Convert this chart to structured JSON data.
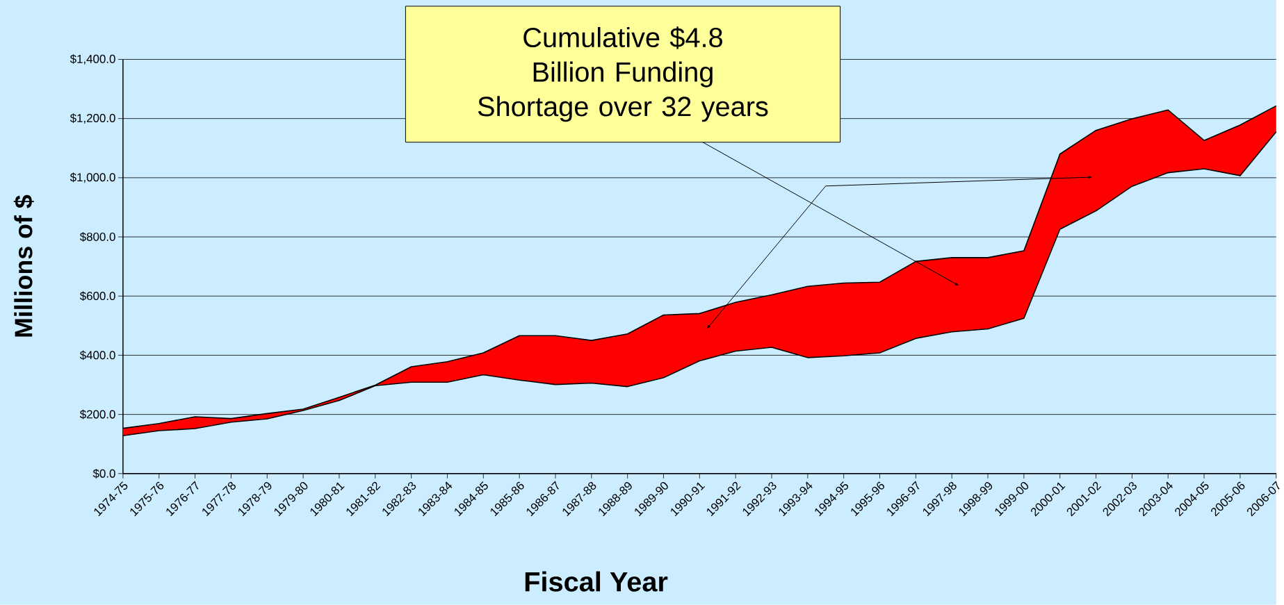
{
  "chart_data": {
    "type": "area",
    "ylabel": "Millions of $",
    "xlabel": "Fiscal Year",
    "annotations": [
      "Cumulative $4.8 Billion Funding Shortage over 32 years"
    ],
    "categories": [
      "1974-75",
      "1975-76",
      "1976-77",
      "1977-78",
      "1978-79",
      "1979-80",
      "1980-81",
      "1981-82",
      "1982-83",
      "1983-84",
      "1984-85",
      "1985-86",
      "1986-87",
      "1987-88",
      "1988-89",
      "1989-90",
      "1990-91",
      "1991-92",
      "1992-93",
      "1993-94",
      "1994-95",
      "1995-96",
      "1996-97",
      "1997-98",
      "1998-99",
      "1999-00",
      "2000-01",
      "2001-02",
      "2002-03",
      "2003-04",
      "2004-05",
      "2005-06",
      "2006-07"
    ],
    "series": [
      {
        "color": "#ff0000",
        "values": [
          153,
          169,
          192,
          186,
          203,
          218,
          258,
          299,
          361,
          378,
          408,
          466,
          466,
          450,
          472,
          536,
          541,
          579,
          604,
          633,
          644,
          647,
          717,
          730,
          730,
          753,
          1080,
          1160,
          1199,
          1229,
          1126,
          1178,
          1243
        ]
      },
      {
        "type": "line",
        "color": "#000000",
        "values": [
          128,
          145,
          152,
          174,
          185,
          213,
          247,
          297,
          309,
          309,
          334,
          316,
          301,
          306,
          294,
          324,
          381,
          414,
          427,
          392,
          398,
          408,
          457,
          479,
          489,
          525,
          826,
          888,
          971,
          1017,
          1030,
          1007,
          1155
        ]
      }
    ],
    "ylim": [
      0,
      1400
    ],
    "yticks": [
      {
        "value": 0,
        "label": "$0.0"
      },
      {
        "value": 200,
        "label": "$200.0"
      },
      {
        "value": 400,
        "label": "$400.0"
      },
      {
        "value": 600,
        "label": "$600.0"
      },
      {
        "value": 800,
        "label": "$800.0"
      },
      {
        "value": 1000,
        "label": "$1,000.0"
      },
      {
        "value": 1200,
        "label": "$1,200.0"
      },
      {
        "value": 1400,
        "label": "$1,400.0"
      }
    ],
    "grid": "y"
  }
}
